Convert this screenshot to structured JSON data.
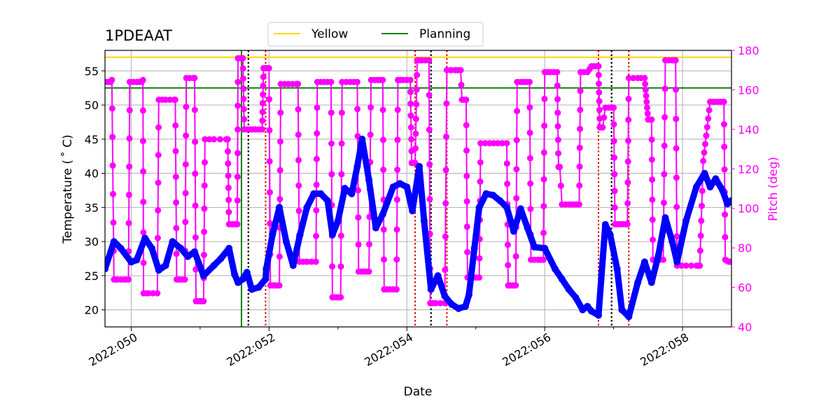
{
  "chart_data": {
    "type": "line",
    "title": "1PDEAAT",
    "xlabel": "Date",
    "ylabel": "Temperature ($^\\circ$C)",
    "ylabel_display": "Temperature ( ˚ C)",
    "y2label": "Pitch (deg)",
    "xlim": [
      49.62,
      58.71
    ],
    "ylim": [
      17.5,
      58
    ],
    "y2lim": [
      40,
      180
    ],
    "x_ticks": [
      50,
      52,
      54,
      56,
      58
    ],
    "x_tick_labels": [
      "2022:050",
      "2022:052",
      "2022:054",
      "2022:056",
      "2022:058"
    ],
    "y_ticks": [
      20,
      25,
      30,
      35,
      40,
      45,
      50,
      55
    ],
    "y_tick_labels": [
      "20",
      "25",
      "30",
      "35",
      "40",
      "45",
      "50",
      "55"
    ],
    "y2_ticks": [
      40,
      60,
      80,
      100,
      120,
      140,
      160,
      180
    ],
    "y2_tick_labels": [
      "40",
      "60",
      "80",
      "100",
      "120",
      "140",
      "160",
      "180"
    ],
    "legend": {
      "position": "top-center",
      "entries": [
        {
          "label": "Yellow",
          "color": "#ffd700"
        },
        {
          "label": "Planning",
          "color": "#008000"
        }
      ]
    },
    "limits": {
      "yellow": 57.0,
      "planning": 52.5
    },
    "vline_green": 51.6,
    "vlines_black_dotted": [
      51.7,
      54.35,
      56.97
    ],
    "vlines_red_dotted": [
      51.95,
      54.12,
      54.58,
      56.78,
      57.22
    ],
    "series": [
      {
        "name": "Temperature",
        "axis": "left",
        "color": "#0000ff",
        "points": [
          [
            49.62,
            26
          ],
          [
            49.75,
            30
          ],
          [
            49.85,
            29
          ],
          [
            50.0,
            27
          ],
          [
            50.08,
            27.3
          ],
          [
            50.2,
            30.5
          ],
          [
            50.3,
            29
          ],
          [
            50.4,
            25.8
          ],
          [
            50.5,
            26.5
          ],
          [
            50.6,
            30
          ],
          [
            50.72,
            29
          ],
          [
            50.82,
            27.8
          ],
          [
            50.92,
            28.5
          ],
          [
            51.05,
            25
          ],
          [
            51.2,
            26.5
          ],
          [
            51.3,
            27.5
          ],
          [
            51.42,
            29
          ],
          [
            51.5,
            25.2
          ],
          [
            51.55,
            24
          ],
          [
            51.62,
            24.5
          ],
          [
            51.68,
            25.5
          ],
          [
            51.75,
            23
          ],
          [
            51.85,
            23.3
          ],
          [
            51.95,
            24.5
          ],
          [
            51.96,
            26
          ],
          [
            52.05,
            31
          ],
          [
            52.15,
            35
          ],
          [
            52.25,
            30
          ],
          [
            52.35,
            26.5
          ],
          [
            52.45,
            31
          ],
          [
            52.55,
            35
          ],
          [
            52.65,
            37
          ],
          [
            52.75,
            37
          ],
          [
            52.85,
            36
          ],
          [
            52.92,
            31
          ],
          [
            53.0,
            33
          ],
          [
            53.1,
            37.8
          ],
          [
            53.2,
            37
          ],
          [
            53.28,
            41
          ],
          [
            53.35,
            45
          ],
          [
            53.45,
            39
          ],
          [
            53.55,
            32
          ],
          [
            53.65,
            34
          ],
          [
            53.8,
            38
          ],
          [
            53.9,
            38.5
          ],
          [
            54.0,
            38
          ],
          [
            54.08,
            34.5
          ],
          [
            54.18,
            41
          ],
          [
            54.25,
            33
          ],
          [
            54.35,
            23
          ],
          [
            54.45,
            25
          ],
          [
            54.55,
            22
          ],
          [
            54.65,
            20.8
          ],
          [
            54.75,
            20.2
          ],
          [
            54.85,
            20.5
          ],
          [
            54.9,
            22.2
          ],
          [
            54.98,
            29
          ],
          [
            55.05,
            35
          ],
          [
            55.15,
            37
          ],
          [
            55.25,
            36.8
          ],
          [
            55.35,
            36
          ],
          [
            55.45,
            35
          ],
          [
            55.55,
            31.5
          ],
          [
            55.65,
            34.8
          ],
          [
            55.75,
            32
          ],
          [
            55.85,
            29.2
          ],
          [
            56.0,
            29
          ],
          [
            56.15,
            26
          ],
          [
            56.25,
            24.5
          ],
          [
            56.35,
            23
          ],
          [
            56.45,
            21.8
          ],
          [
            56.55,
            20
          ],
          [
            56.62,
            20.5
          ],
          [
            56.68,
            19.8
          ],
          [
            56.78,
            19.2
          ],
          [
            56.88,
            32.5
          ],
          [
            56.95,
            31
          ],
          [
            57.05,
            26
          ],
          [
            57.12,
            20
          ],
          [
            57.22,
            19
          ],
          [
            57.35,
            24
          ],
          [
            57.45,
            27
          ],
          [
            57.55,
            24
          ],
          [
            57.65,
            28
          ],
          [
            57.75,
            33.5
          ],
          [
            57.85,
            30
          ],
          [
            57.92,
            27
          ],
          [
            58.05,
            33
          ],
          [
            58.2,
            38
          ],
          [
            58.32,
            40
          ],
          [
            58.4,
            38
          ],
          [
            58.48,
            39.2
          ],
          [
            58.58,
            37.5
          ],
          [
            58.65,
            35.5
          ],
          [
            58.71,
            36
          ]
        ]
      },
      {
        "name": "Pitch",
        "axis": "right",
        "color": "#ff00ff",
        "points": [
          [
            49.62,
            164
          ],
          [
            49.7,
            164
          ],
          [
            49.72,
            165
          ],
          [
            49.75,
            64
          ],
          [
            49.8,
            64
          ],
          [
            49.9,
            64
          ],
          [
            49.96,
            64
          ],
          [
            49.98,
            164
          ],
          [
            50.08,
            164
          ],
          [
            50.15,
            164
          ],
          [
            50.17,
            165
          ],
          [
            50.18,
            57
          ],
          [
            50.25,
            57
          ],
          [
            50.38,
            57
          ],
          [
            50.4,
            155
          ],
          [
            50.5,
            155
          ],
          [
            50.62,
            155
          ],
          [
            50.64,
            155
          ],
          [
            50.66,
            64
          ],
          [
            50.7,
            64
          ],
          [
            50.78,
            64
          ],
          [
            50.8,
            166
          ],
          [
            50.9,
            166
          ],
          [
            50.92,
            166
          ],
          [
            50.94,
            53
          ],
          [
            51.0,
            53
          ],
          [
            51.05,
            53
          ],
          [
            51.07,
            135
          ],
          [
            51.2,
            135
          ],
          [
            51.38,
            135
          ],
          [
            51.4,
            135
          ],
          [
            51.42,
            92
          ],
          [
            51.5,
            92
          ],
          [
            51.54,
            92
          ],
          [
            51.55,
            176
          ],
          [
            51.6,
            176
          ],
          [
            51.62,
            176
          ],
          [
            51.64,
            140
          ],
          [
            51.72,
            140
          ],
          [
            51.8,
            140
          ],
          [
            51.9,
            140
          ],
          [
            51.92,
            171
          ],
          [
            51.98,
            171
          ],
          [
            52.0,
            171
          ],
          [
            52.02,
            61
          ],
          [
            52.08,
            61
          ],
          [
            52.15,
            61
          ],
          [
            52.17,
            163
          ],
          [
            52.28,
            163
          ],
          [
            52.4,
            163
          ],
          [
            52.42,
            163
          ],
          [
            52.44,
            73
          ],
          [
            52.55,
            73
          ],
          [
            52.68,
            73
          ],
          [
            52.7,
            164
          ],
          [
            52.8,
            164
          ],
          [
            52.9,
            164
          ],
          [
            52.92,
            55
          ],
          [
            52.98,
            55
          ],
          [
            53.04,
            55
          ],
          [
            53.06,
            164
          ],
          [
            53.18,
            164
          ],
          [
            53.28,
            164
          ],
          [
            53.3,
            68
          ],
          [
            53.38,
            68
          ],
          [
            53.45,
            68
          ],
          [
            53.48,
            165
          ],
          [
            53.58,
            165
          ],
          [
            53.65,
            165
          ],
          [
            53.67,
            59
          ],
          [
            53.75,
            59
          ],
          [
            53.85,
            59
          ],
          [
            53.87,
            165
          ],
          [
            53.95,
            165
          ],
          [
            54.05,
            165
          ],
          [
            54.07,
            123
          ],
          [
            54.12,
            123
          ],
          [
            54.15,
            175
          ],
          [
            54.22,
            175
          ],
          [
            54.32,
            175
          ],
          [
            54.34,
            52
          ],
          [
            54.42,
            52
          ],
          [
            54.55,
            52
          ],
          [
            54.58,
            170
          ],
          [
            54.7,
            170
          ],
          [
            54.78,
            170
          ],
          [
            54.8,
            155
          ],
          [
            54.86,
            155
          ],
          [
            54.88,
            65
          ],
          [
            54.96,
            65
          ],
          [
            55.05,
            65
          ],
          [
            55.07,
            133
          ],
          [
            55.2,
            133
          ],
          [
            55.32,
            133
          ],
          [
            55.45,
            133
          ],
          [
            55.47,
            61
          ],
          [
            55.5,
            61
          ],
          [
            55.58,
            61
          ],
          [
            55.6,
            164
          ],
          [
            55.7,
            164
          ],
          [
            55.78,
            164
          ],
          [
            55.8,
            74
          ],
          [
            55.9,
            74
          ],
          [
            55.98,
            74
          ],
          [
            56.0,
            169
          ],
          [
            56.08,
            169
          ],
          [
            56.18,
            169
          ],
          [
            56.2,
            121
          ],
          [
            56.22,
            121
          ],
          [
            56.25,
            102
          ],
          [
            56.35,
            102
          ],
          [
            56.42,
            102
          ],
          [
            56.5,
            102
          ],
          [
            56.52,
            169
          ],
          [
            56.62,
            169
          ],
          [
            56.68,
            172
          ],
          [
            56.75,
            172
          ],
          [
            56.78,
            172
          ],
          [
            56.8,
            141
          ],
          [
            56.84,
            141
          ],
          [
            56.88,
            151
          ],
          [
            56.97,
            151
          ],
          [
            57.0,
            151
          ],
          [
            57.02,
            92
          ],
          [
            57.1,
            92
          ],
          [
            57.18,
            92
          ],
          [
            57.2,
            92
          ],
          [
            57.22,
            166
          ],
          [
            57.35,
            166
          ],
          [
            57.45,
            166
          ],
          [
            57.5,
            145
          ],
          [
            57.55,
            145
          ],
          [
            57.57,
            74
          ],
          [
            57.62,
            74
          ],
          [
            57.72,
            74
          ],
          [
            57.75,
            175
          ],
          [
            57.85,
            175
          ],
          [
            57.9,
            175
          ],
          [
            57.92,
            71
          ],
          [
            58.05,
            71
          ],
          [
            58.2,
            71
          ],
          [
            58.25,
            71
          ],
          [
            58.3,
            124
          ],
          [
            58.4,
            154
          ],
          [
            58.5,
            154
          ],
          [
            58.6,
            154
          ],
          [
            58.62,
            74
          ],
          [
            58.67,
            73
          ],
          [
            58.71,
            73
          ]
        ]
      }
    ]
  }
}
